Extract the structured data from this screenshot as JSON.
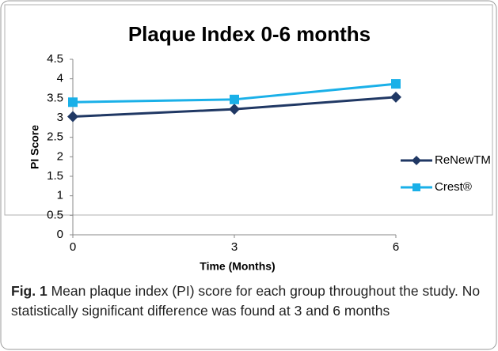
{
  "chart_data": {
    "type": "line",
    "title": "Plaque Index 0-6 months",
    "x_label": "Time (Months)",
    "y_label": "PI Score",
    "x": [
      0,
      3,
      6
    ],
    "xlim": [
      0,
      6
    ],
    "xticks": [
      0,
      3,
      6
    ],
    "ylim": [
      0,
      4.5
    ],
    "yticks": [
      0,
      0.5,
      1,
      1.5,
      2,
      2.5,
      3,
      3.5,
      4,
      4.5
    ],
    "grid": false,
    "legend": "right",
    "series": [
      {
        "name": "ReNewTM",
        "color": "#203864",
        "marker": "diamond",
        "values": [
          3.03,
          3.22,
          3.53
        ]
      },
      {
        "name": "Crest®",
        "color": "#1ab0e8",
        "marker": "square",
        "values": [
          3.4,
          3.47,
          3.87
        ]
      }
    ]
  },
  "caption": {
    "label": "Fig. 1",
    "text": "Mean plaque index (PI) score for each group throughout the study. No statistically significant difference was found at 3 and 6 months"
  }
}
